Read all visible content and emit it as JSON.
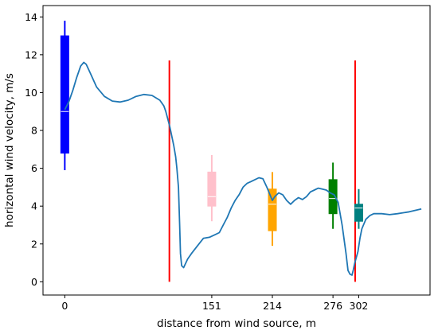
{
  "chart_data": {
    "type": "line",
    "title": "",
    "xlabel": "distance from wind source, m",
    "ylabel": "horizontal wind velocity, m/s",
    "xlim": [
      -55,
      922
    ],
    "ylim": [
      -0.7,
      14.6
    ],
    "x_ticks": [
      {
        "value": 0,
        "label": "0"
      },
      {
        "value": 371,
        "label": "151"
      },
      {
        "value": 524,
        "label": "214"
      },
      {
        "value": 677,
        "label": "276"
      },
      {
        "value": 742,
        "label": "302"
      }
    ],
    "y_ticks": [
      {
        "value": 0,
        "label": "0"
      },
      {
        "value": 2,
        "label": "2"
      },
      {
        "value": 4,
        "label": "4"
      },
      {
        "value": 6,
        "label": "6"
      },
      {
        "value": 8,
        "label": "8"
      },
      {
        "value": 10,
        "label": "10"
      },
      {
        "value": 12,
        "label": "12"
      },
      {
        "value": 14,
        "label": "14"
      }
    ],
    "grid": false,
    "legend": "none",
    "line_series": {
      "color": "#1f77b4",
      "x": [
        0,
        10,
        20,
        30,
        40,
        48,
        54,
        65,
        80,
        100,
        120,
        140,
        160,
        180,
        200,
        220,
        240,
        250,
        255,
        260,
        265,
        270,
        275,
        280,
        283,
        287,
        290,
        292,
        295,
        300,
        310,
        320,
        335,
        350,
        365,
        380,
        390,
        400,
        410,
        420,
        430,
        440,
        450,
        460,
        470,
        480,
        490,
        500,
        510,
        520,
        524,
        530,
        540,
        550,
        560,
        570,
        580,
        590,
        600,
        610,
        620,
        630,
        640,
        650,
        660,
        670,
        680,
        690,
        700,
        710,
        715,
        720,
        725,
        728,
        732,
        740,
        745,
        750,
        760,
        770,
        780,
        800,
        820,
        840,
        870,
        900
      ],
      "y": [
        9.1,
        9.5,
        10.1,
        10.8,
        11.4,
        11.6,
        11.5,
        11.0,
        10.3,
        9.8,
        9.55,
        9.5,
        9.6,
        9.8,
        9.9,
        9.85,
        9.6,
        9.3,
        9.0,
        8.6,
        8.2,
        7.7,
        7.2,
        6.6,
        6.0,
        5.0,
        3.0,
        1.5,
        0.85,
        0.75,
        1.2,
        1.5,
        1.9,
        2.3,
        2.35,
        2.5,
        2.6,
        3.0,
        3.4,
        3.9,
        4.3,
        4.6,
        5.0,
        5.2,
        5.3,
        5.4,
        5.5,
        5.45,
        5.0,
        4.5,
        4.3,
        4.5,
        4.7,
        4.6,
        4.3,
        4.1,
        4.3,
        4.45,
        4.35,
        4.5,
        4.75,
        4.85,
        4.95,
        4.9,
        4.85,
        4.7,
        4.6,
        4.2,
        3.0,
        1.5,
        0.6,
        0.4,
        0.35,
        0.6,
        1.0,
        1.6,
        2.3,
        2.8,
        3.3,
        3.5,
        3.6,
        3.6,
        3.55,
        3.6,
        3.7,
        3.85
      ]
    },
    "boxes": [
      {
        "x": 0,
        "whisker_low": 5.9,
        "q1": 6.8,
        "median": 9.0,
        "q3": 13.0,
        "whisker_high": 13.8,
        "color": "#0000ff"
      },
      {
        "x": 371,
        "whisker_low": 3.2,
        "q1": 4.0,
        "median": 4.5,
        "q3": 5.8,
        "whisker_high": 6.7,
        "color": "#ffc0cb"
      },
      {
        "x": 524,
        "whisker_low": 1.9,
        "q1": 2.7,
        "median": 4.1,
        "q3": 4.9,
        "whisker_high": 5.8,
        "color": "#ffa500"
      },
      {
        "x": 677,
        "whisker_low": 2.8,
        "q1": 3.6,
        "median": 4.4,
        "q3": 5.4,
        "whisker_high": 6.3,
        "color": "#008000"
      },
      {
        "x": 742,
        "whisker_low": 2.8,
        "q1": 3.2,
        "median": 3.9,
        "q3": 4.1,
        "whisker_high": 4.9,
        "color": "#008080"
      }
    ],
    "vertical_lines": [
      {
        "x": 264,
        "y_from": 0,
        "y_to": 11.7,
        "color": "#ff0000"
      },
      {
        "x": 733,
        "y_from": 0,
        "y_to": 11.7,
        "color": "#ff0000"
      }
    ]
  }
}
